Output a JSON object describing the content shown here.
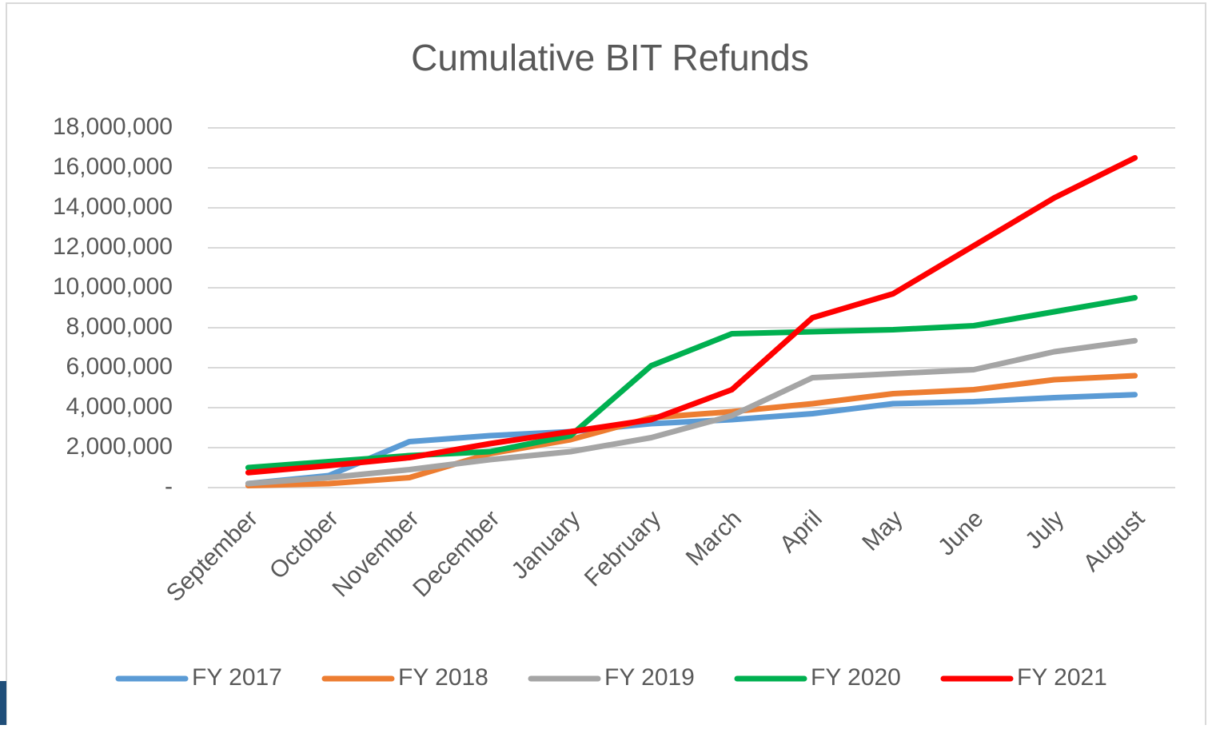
{
  "chart_data": {
    "type": "line",
    "title": "Cumulative BIT Refunds",
    "categories": [
      "September",
      "October",
      "November",
      "December",
      "January",
      "February",
      "March",
      "April",
      "May",
      "June",
      "July",
      "August"
    ],
    "series": [
      {
        "name": "FY 2017",
        "color": "#5b9bd5",
        "values": [
          200000,
          600000,
          2300000,
          2600000,
          2800000,
          3200000,
          3400000,
          3700000,
          4200000,
          4300000,
          4500000,
          4650000
        ]
      },
      {
        "name": "FY 2018",
        "color": "#ed7d31",
        "values": [
          100000,
          200000,
          500000,
          1700000,
          2400000,
          3500000,
          3800000,
          4200000,
          4700000,
          4900000,
          5400000,
          5600000
        ]
      },
      {
        "name": "FY 2019",
        "color": "#a5a5a5",
        "values": [
          200000,
          500000,
          900000,
          1400000,
          1800000,
          2500000,
          3600000,
          5500000,
          5700000,
          5900000,
          6800000,
          7350000
        ]
      },
      {
        "name": "FY 2020",
        "color": "#00b050",
        "values": [
          1000000,
          1300000,
          1600000,
          1800000,
          2600000,
          6100000,
          7700000,
          7800000,
          7900000,
          8100000,
          8800000,
          9500000
        ]
      },
      {
        "name": "FY 2021",
        "color": "#ff0000",
        "values": [
          750000,
          1100000,
          1500000,
          2200000,
          2800000,
          3400000,
          4900000,
          8500000,
          9700000,
          12100000,
          14500000,
          16500000
        ]
      }
    ],
    "ylim": [
      0,
      18000000
    ],
    "yticks": [
      {
        "value": 0,
        "label": "-"
      },
      {
        "value": 2000000,
        "label": "2,000,000"
      },
      {
        "value": 4000000,
        "label": "4,000,000"
      },
      {
        "value": 6000000,
        "label": "6,000,000"
      },
      {
        "value": 8000000,
        "label": "8,000,000"
      },
      {
        "value": 10000000,
        "label": "10,000,000"
      },
      {
        "value": 12000000,
        "label": "12,000,000"
      },
      {
        "value": 14000000,
        "label": "14,000,000"
      },
      {
        "value": 16000000,
        "label": "16,000,000"
      },
      {
        "value": 18000000,
        "label": "18,000,000"
      }
    ],
    "grid": true,
    "legend": "bottom"
  }
}
